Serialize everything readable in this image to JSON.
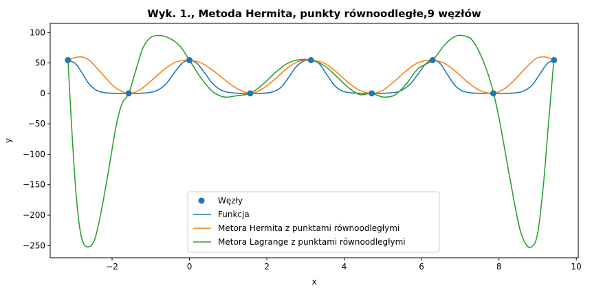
{
  "chart_data": {
    "type": "line",
    "title": "Wyk. 1., Metoda Hermita, punkty równoodległe,9 węzłów",
    "xlabel": "x",
    "ylabel": "y",
    "xlim": [
      -3.6,
      10.05
    ],
    "ylim": [
      -270,
      115
    ],
    "xticks": [
      -2,
      0,
      2,
      4,
      6,
      8,
      10
    ],
    "yticks": [
      -250,
      -200,
      -150,
      -100,
      -50,
      0,
      50,
      100
    ],
    "grid": false,
    "legend_position": "bottom-center",
    "nodes": {
      "name": "Węzły",
      "color": "#1f77b4",
      "x": [
        -3.1416,
        -1.5708,
        0,
        1.5708,
        3.1416,
        4.7124,
        6.2832,
        7.854,
        9.4248
      ],
      "y": [
        54.6,
        0,
        54.6,
        0,
        54.6,
        0,
        54.6,
        0,
        54.6
      ]
    },
    "series": [
      {
        "name": "Funkcja",
        "color": "#1f77b4",
        "x": [
          -3.14,
          -2.95,
          -2.8,
          -2.6,
          -2.4,
          -2.2,
          -2.0,
          -1.8,
          -1.57,
          -1.3,
          -1.0,
          -0.8,
          -0.6,
          -0.4,
          -0.2,
          0.0,
          0.2,
          0.4,
          0.6,
          0.8,
          1.0,
          1.3,
          1.57,
          1.8,
          2.1,
          2.35,
          2.55,
          2.75,
          2.95,
          3.14,
          3.35,
          3.55,
          3.75,
          3.95,
          4.2,
          4.71,
          5.2,
          5.45,
          5.7,
          5.9,
          6.1,
          6.28,
          6.48,
          6.68,
          6.88,
          7.1,
          7.4,
          7.85,
          8.3,
          8.6,
          8.85,
          9.05,
          9.25,
          9.42
        ],
        "y": [
          54.6,
          49,
          36,
          16,
          5,
          1.2,
          0.3,
          0.04,
          0,
          0.1,
          1.8,
          6,
          16,
          33,
          49,
          54.6,
          49,
          33,
          16,
          6,
          1.8,
          0.1,
          0,
          0.1,
          1.6,
          9,
          25,
          43,
          53,
          54.6,
          49,
          31,
          13,
          4,
          0.8,
          0,
          0.8,
          4,
          15,
          31,
          48,
          54.6,
          49,
          30,
          12,
          3,
          0.3,
          0,
          0.3,
          3,
          13,
          31,
          49,
          54.6
        ]
      },
      {
        "name": "Metora Hermita z punktami równoodległymi",
        "color": "#ff7f0e",
        "x": [
          -3.14,
          -3.0,
          -2.8,
          -2.6,
          -2.4,
          -2.2,
          -2.0,
          -1.8,
          -1.57,
          -1.3,
          -1.0,
          -0.7,
          -0.4,
          -0.2,
          0.0,
          0.3,
          0.6,
          0.9,
          1.2,
          1.57,
          1.9,
          2.2,
          2.5,
          2.8,
          3.14,
          3.5,
          3.8,
          4.1,
          4.4,
          4.71,
          5.0,
          5.3,
          5.6,
          5.9,
          6.28,
          6.6,
          6.9,
          7.2,
          7.5,
          7.85,
          8.15,
          8.4,
          8.7,
          8.95,
          9.15,
          9.3,
          9.42
        ],
        "y": [
          54.6,
          58,
          60,
          55,
          42,
          28,
          14,
          5,
          0,
          5,
          20,
          37,
          50,
          54,
          54.6,
          50,
          38,
          23,
          9,
          0,
          8,
          23,
          40,
          52,
          54.6,
          49,
          35,
          18,
          5,
          0,
          5,
          20,
          37,
          50,
          54.6,
          49,
          35,
          18,
          5,
          0,
          8,
          22,
          42,
          57,
          60,
          58,
          54.6
        ]
      },
      {
        "name": "Metora Lagrange z punktami równoodległymi",
        "color": "#2ca02c",
        "x": [
          -3.14,
          -3.05,
          -2.95,
          -2.85,
          -2.75,
          -2.6,
          -2.45,
          -2.3,
          -2.1,
          -1.9,
          -1.75,
          -1.57,
          -1.4,
          -1.2,
          -1.0,
          -0.75,
          -0.5,
          -0.25,
          0.0,
          0.3,
          0.6,
          0.9,
          1.2,
          1.57,
          1.9,
          2.2,
          2.5,
          2.8,
          3.14,
          3.5,
          3.8,
          4.1,
          4.4,
          4.71,
          5.0,
          5.3,
          5.6,
          5.9,
          6.28,
          6.6,
          6.85,
          7.05,
          7.3,
          7.55,
          7.8,
          8.0,
          8.2,
          8.4,
          8.55,
          8.7,
          8.85,
          9.0,
          9.15,
          9.28,
          9.42
        ],
        "y": [
          54.6,
          -50,
          -150,
          -215,
          -245,
          -252,
          -240,
          -200,
          -130,
          -55,
          -18,
          0,
          35,
          75,
          92,
          95,
          90,
          78,
          54.6,
          25,
          3,
          -6,
          -4,
          0,
          15,
          33,
          48,
          55,
          54.6,
          45,
          28,
          10,
          -2,
          0,
          -6,
          -3,
          15,
          40,
          54.6,
          80,
          93,
          95,
          88,
          60,
          15,
          -40,
          -110,
          -180,
          -225,
          -248,
          -252,
          -230,
          -150,
          -50,
          54.6
        ]
      }
    ]
  }
}
